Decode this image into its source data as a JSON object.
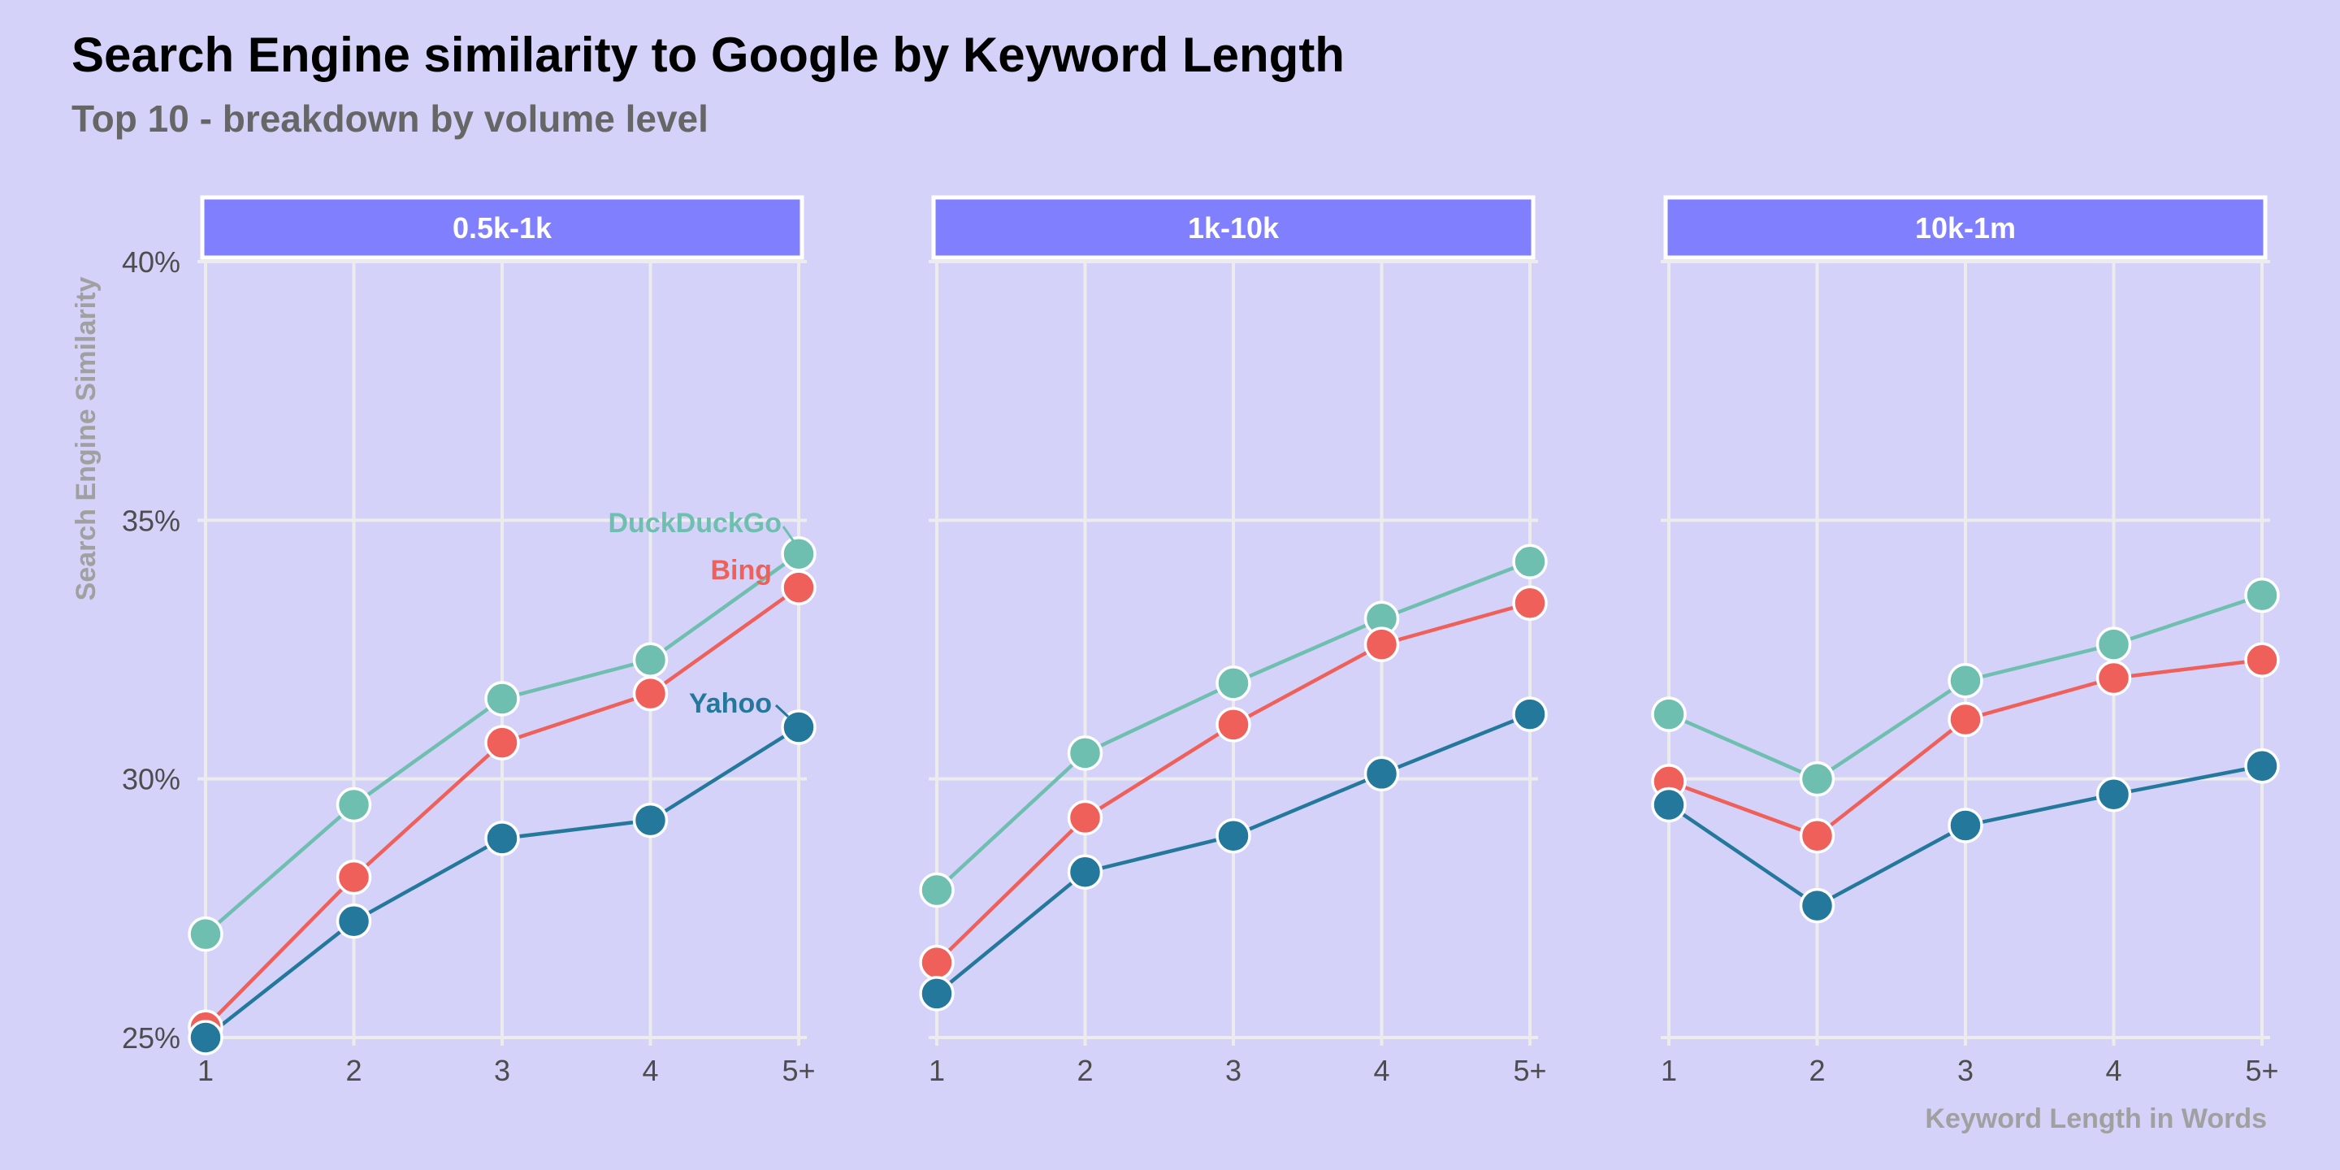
{
  "chart_data": {
    "type": "line",
    "title": "Search Engine similarity to Google by Keyword Length",
    "subtitle": "Top 10 - breakdown by volume level",
    "xlabel": "Keyword Length in Words",
    "ylabel": "Search Engine Similarity",
    "categories": [
      "1",
      "2",
      "3",
      "4",
      "5+"
    ],
    "ylim": [
      25,
      40
    ],
    "yticks": [
      25,
      30,
      35,
      40
    ],
    "ytick_labels": [
      "25%",
      "30%",
      "35%",
      "40%"
    ],
    "grid": true,
    "colors": {
      "DuckDuckGo": "#6fbfb0",
      "Bing": "#f0605a",
      "Yahoo": "#23789b",
      "strip": "#8080ff",
      "background": "#d4d2f8",
      "grid": "#ececec"
    },
    "facets": [
      {
        "label": "0.5k-1k",
        "series": [
          {
            "name": "DuckDuckGo",
            "values": [
              27.0,
              29.5,
              31.55,
              32.3,
              34.35
            ]
          },
          {
            "name": "Bing",
            "values": [
              25.2,
              28.1,
              30.7,
              31.65,
              33.7
            ]
          },
          {
            "name": "Yahoo",
            "values": [
              25.0,
              27.25,
              28.85,
              29.2,
              31.0
            ]
          }
        ]
      },
      {
        "label": "1k-10k",
        "series": [
          {
            "name": "DuckDuckGo",
            "values": [
              27.85,
              30.5,
              31.85,
              33.1,
              34.2
            ]
          },
          {
            "name": "Bing",
            "values": [
              26.45,
              29.25,
              31.05,
              32.6,
              33.4
            ]
          },
          {
            "name": "Yahoo",
            "values": [
              25.85,
              28.2,
              28.9,
              30.1,
              31.25
            ]
          }
        ]
      },
      {
        "label": "10k-1m",
        "series": [
          {
            "name": "DuckDuckGo",
            "values": [
              31.25,
              30.0,
              31.9,
              32.6,
              33.55
            ]
          },
          {
            "name": "Bing",
            "values": [
              29.95,
              28.9,
              31.15,
              31.95,
              32.3
            ]
          },
          {
            "name": "Yahoo",
            "values": [
              29.5,
              27.55,
              29.1,
              29.7,
              30.25
            ]
          }
        ]
      }
    ],
    "annotations": [
      {
        "facet": 0,
        "series": "DuckDuckGo",
        "text": "DuckDuckGo"
      },
      {
        "facet": 0,
        "series": "Bing",
        "text": "Bing"
      },
      {
        "facet": 0,
        "series": "Yahoo",
        "text": "Yahoo"
      }
    ]
  }
}
